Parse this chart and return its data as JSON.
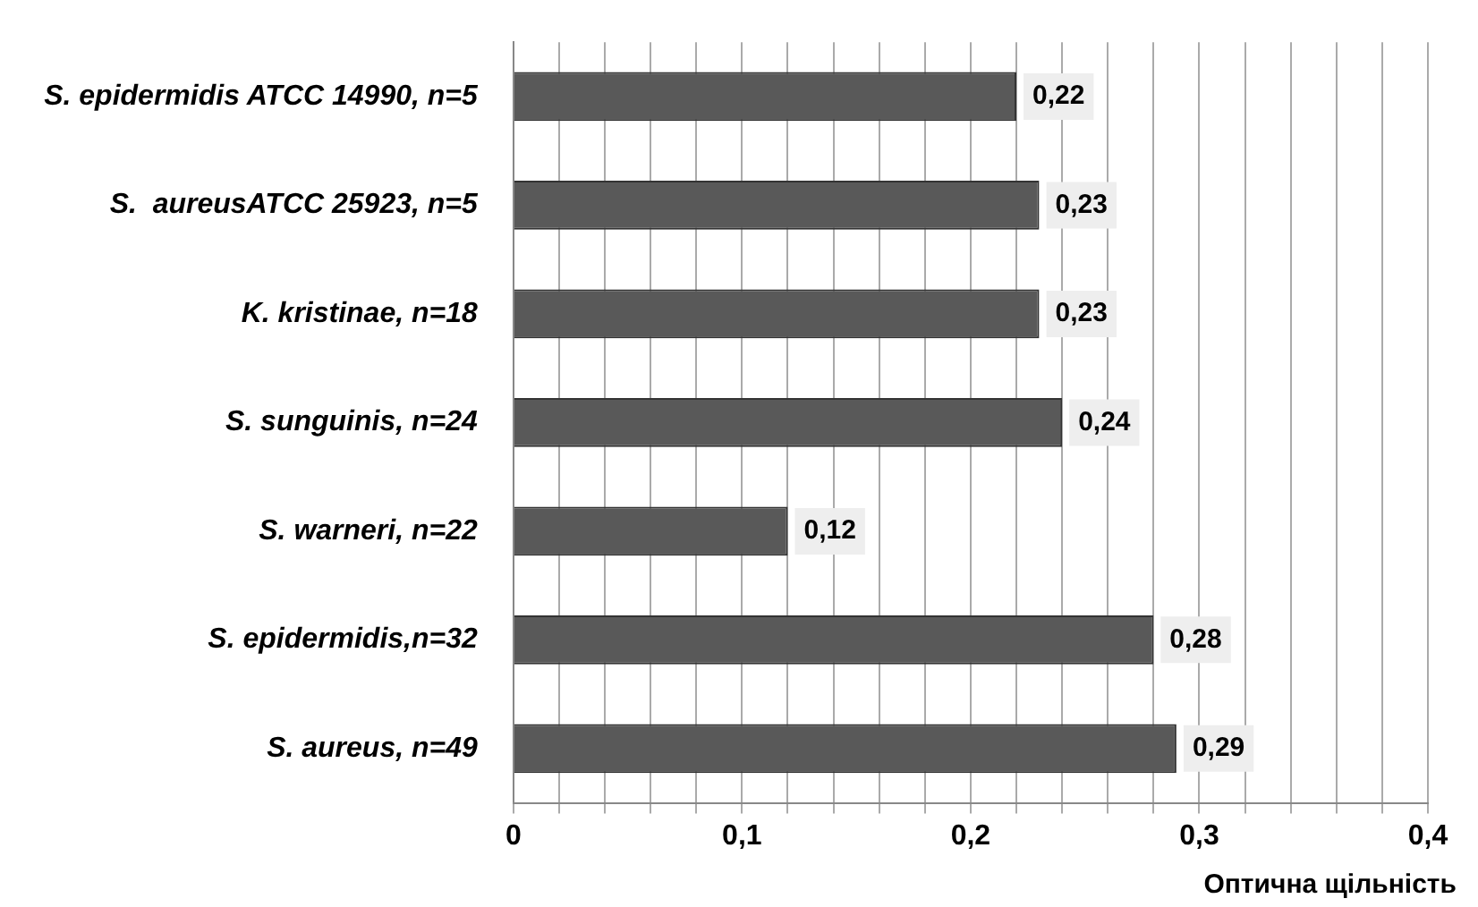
{
  "chart_data": {
    "type": "bar",
    "orientation": "horizontal",
    "xlabel": "Оптична щільність",
    "categories": [
      "S. epidermidis ATCC 14990, n=5",
      "S.  aureusATCC 25923, n=5",
      "K. kristinae, n=18",
      "S. sunguinis, n=24",
      "S. warneri, n=22",
      "S. epidermidis,n=32",
      "S. aureus, n=49"
    ],
    "values": [
      0.22,
      0.23,
      0.23,
      0.24,
      0.12,
      0.28,
      0.29
    ],
    "value_labels": [
      "0,22",
      "0,23",
      "0,23",
      "0,24",
      "0,12",
      "0,28",
      "0,29"
    ],
    "color": "#595959",
    "xlim": [
      0,
      0.4
    ],
    "xticks": [
      {
        "value": 0,
        "label": "0"
      },
      {
        "value": 0.02,
        "label": null
      },
      {
        "value": 0.04,
        "label": null
      },
      {
        "value": 0.06,
        "label": null
      },
      {
        "value": 0.08,
        "label": null
      },
      {
        "value": 0.1,
        "label": "0,1"
      },
      {
        "value": 0.12,
        "label": null
      },
      {
        "value": 0.14,
        "label": null
      },
      {
        "value": 0.16,
        "label": null
      },
      {
        "value": 0.18,
        "label": null
      },
      {
        "value": 0.2,
        "label": "0,2"
      },
      {
        "value": 0.22,
        "label": null
      },
      {
        "value": 0.24,
        "label": null
      },
      {
        "value": 0.26,
        "label": null
      },
      {
        "value": 0.28,
        "label": null
      },
      {
        "value": 0.3,
        "label": "0,3"
      },
      {
        "value": 0.32,
        "label": null
      },
      {
        "value": 0.34,
        "label": null
      },
      {
        "value": 0.36,
        "label": null
      },
      {
        "value": 0.38,
        "label": null
      },
      {
        "value": 0.4,
        "label": "0,4"
      }
    ],
    "grid": "x",
    "legend": false
  }
}
